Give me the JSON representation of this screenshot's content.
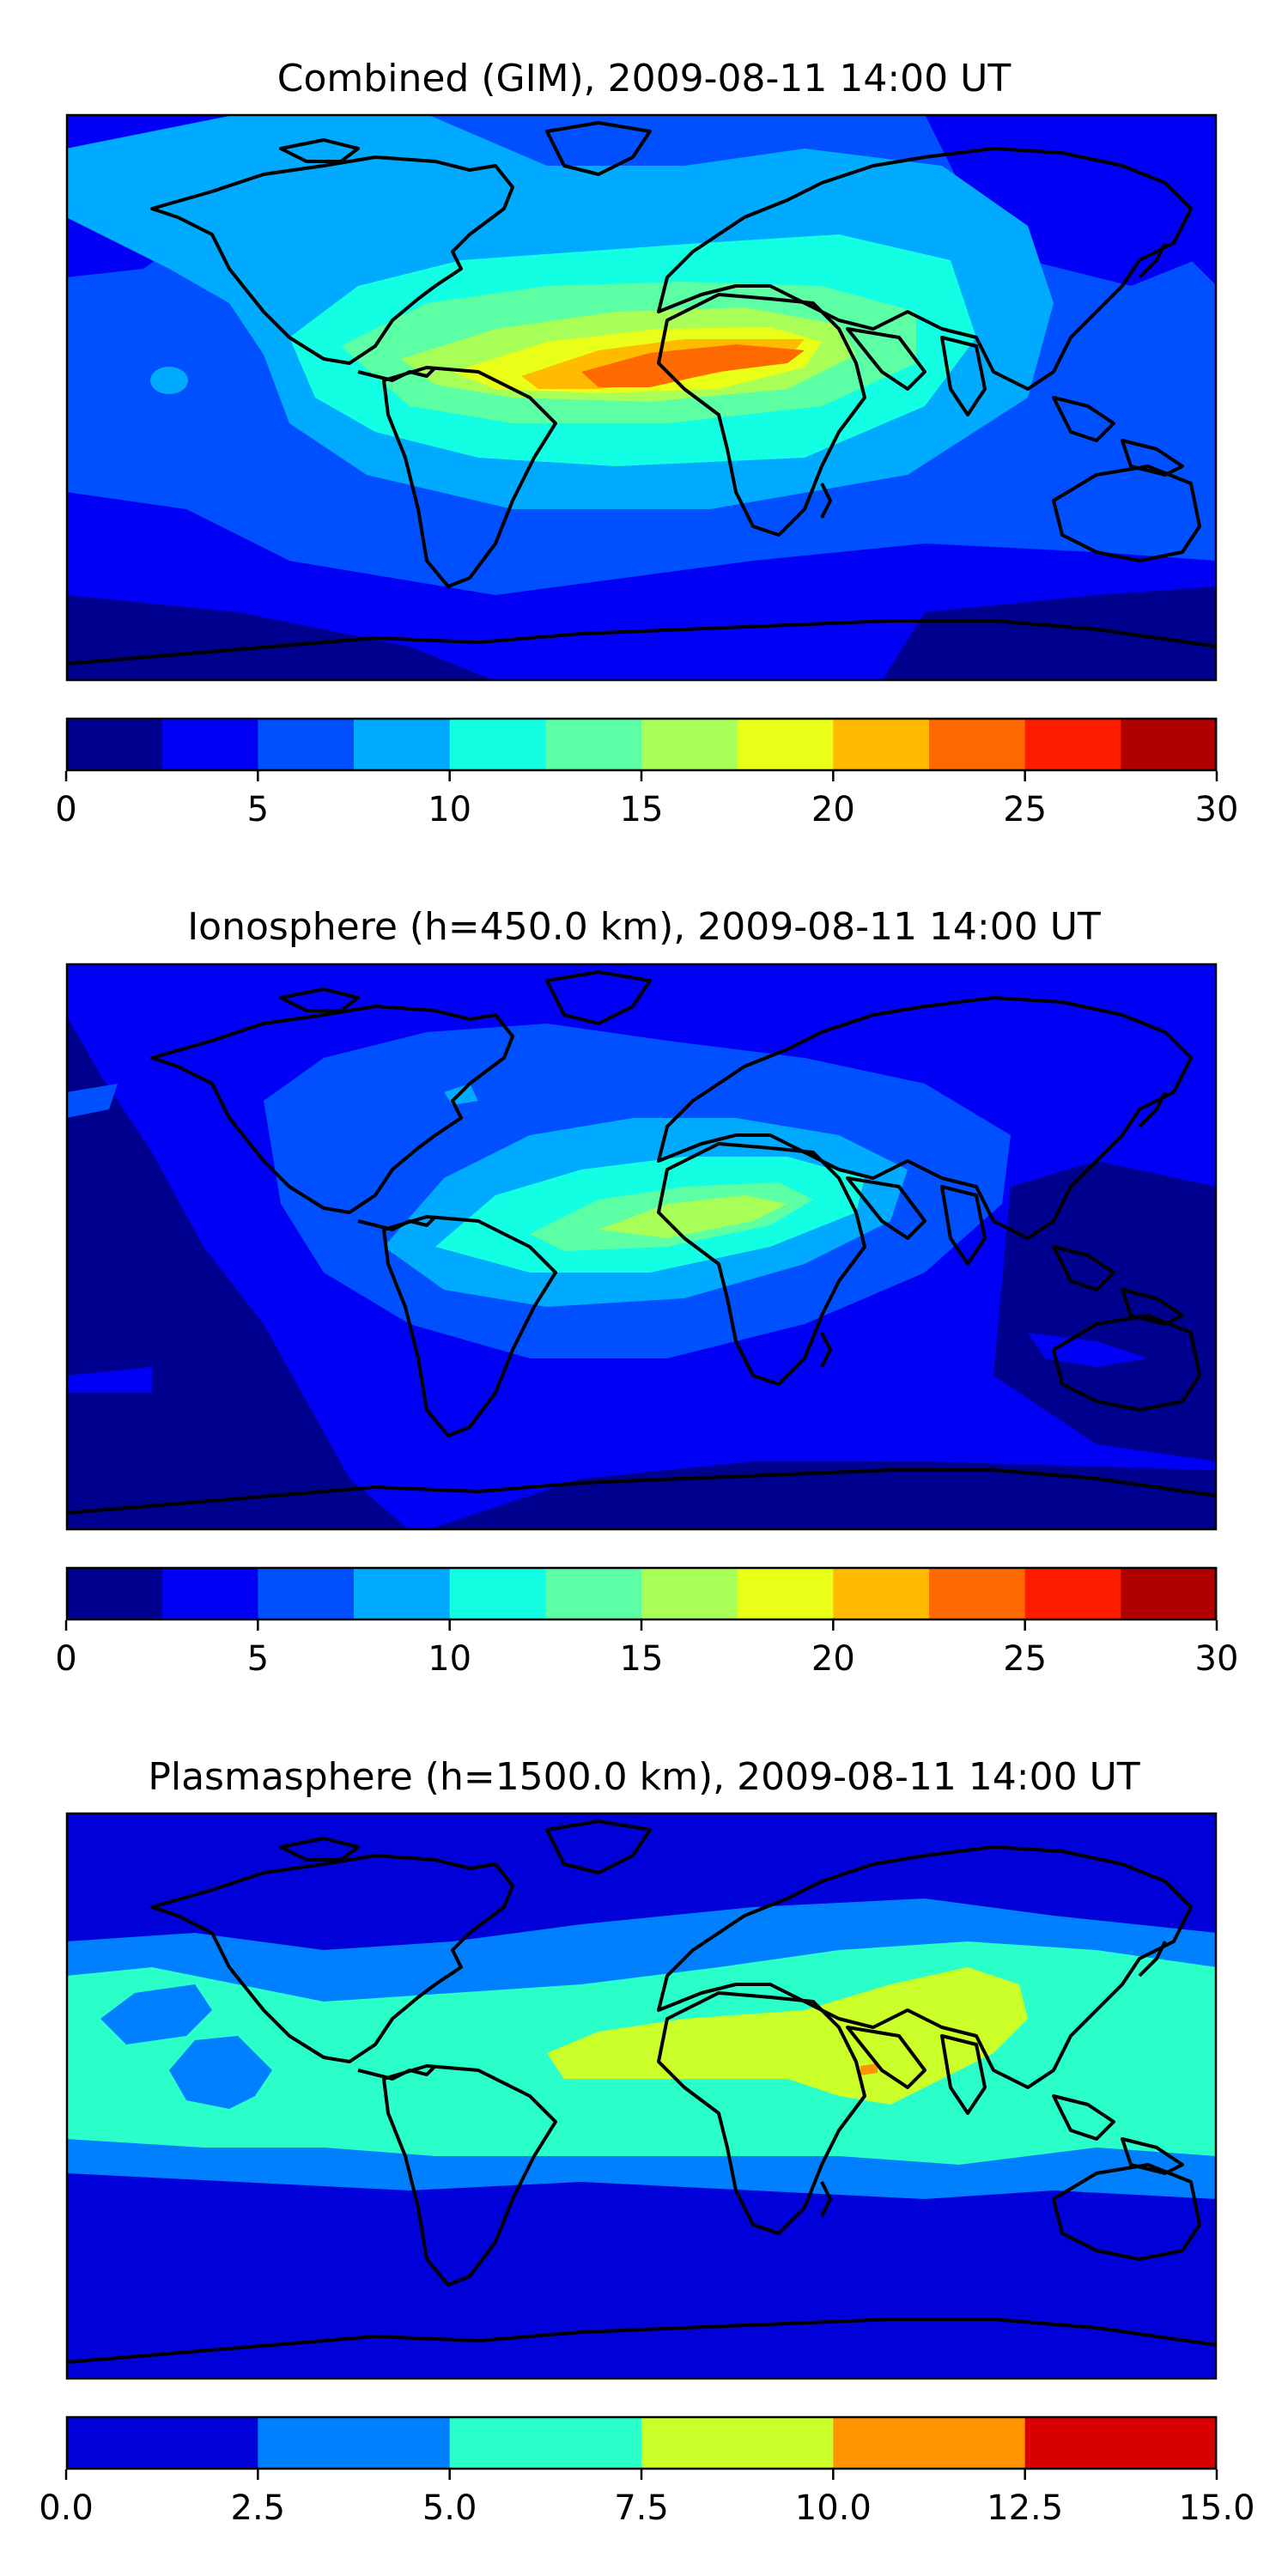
{
  "chart_data": [
    {
      "type": "heatmap",
      "title": "Combined (GIM), 2009-08-11 14:00 UT",
      "colorbar": {
        "levels": [
          0,
          2.5,
          5,
          7.5,
          10,
          12.5,
          15,
          17.5,
          20,
          22.5,
          25,
          27.5,
          30
        ],
        "colors": [
          "#00008f",
          "#0000f5",
          "#0050ff",
          "#00aaff",
          "#13ffe3",
          "#5cffa3",
          "#a7ff57",
          "#e9ff17",
          "#ffbb00",
          "#ff6a00",
          "#ff1d00",
          "#b00000"
        ],
        "tick_values": [
          0,
          5,
          10,
          15,
          20,
          25,
          30
        ],
        "tick_labels": [
          "0",
          "5",
          "10",
          "15",
          "20",
          "25",
          "30"
        ]
      },
      "peak_region": "West/Central Africa to Arabia",
      "peak_value": 25
    },
    {
      "type": "heatmap",
      "title": "Ionosphere  (h=450.0 km), 2009-08-11 14:00 UT",
      "colorbar": {
        "levels": [
          0,
          2.5,
          5,
          7.5,
          10,
          12.5,
          15,
          17.5,
          20,
          22.5,
          25,
          27.5,
          30
        ],
        "colors": [
          "#00008f",
          "#0000f5",
          "#0050ff",
          "#00aaff",
          "#13ffe3",
          "#5cffa3",
          "#a7ff57",
          "#e9ff17",
          "#ffbb00",
          "#ff6a00",
          "#ff1d00",
          "#b00000"
        ],
        "tick_values": [
          0,
          5,
          10,
          15,
          20,
          25,
          30
        ],
        "tick_labels": [
          "0",
          "5",
          "10",
          "15",
          "20",
          "25",
          "30"
        ]
      },
      "peak_region": "North Africa",
      "peak_value": 17.5
    },
    {
      "type": "heatmap",
      "title": "Plasmasphere (h=1500.0 km), 2009-08-11 14:00 UT",
      "colorbar": {
        "levels": [
          0,
          2.5,
          5,
          7.5,
          10,
          12.5,
          15
        ],
        "colors": [
          "#0000d9",
          "#0080ff",
          "#2affca",
          "#cbff2a",
          "#ff9400",
          "#d90000"
        ],
        "tick_values": [
          0,
          2.5,
          5,
          7.5,
          10,
          12.5,
          15
        ],
        "tick_labels": [
          "0.0",
          "2.5",
          "5.0",
          "7.5",
          "10.0",
          "12.5",
          "15.0"
        ]
      },
      "peak_region": "Indian Ocean / South Asia",
      "peak_value": 10
    }
  ]
}
